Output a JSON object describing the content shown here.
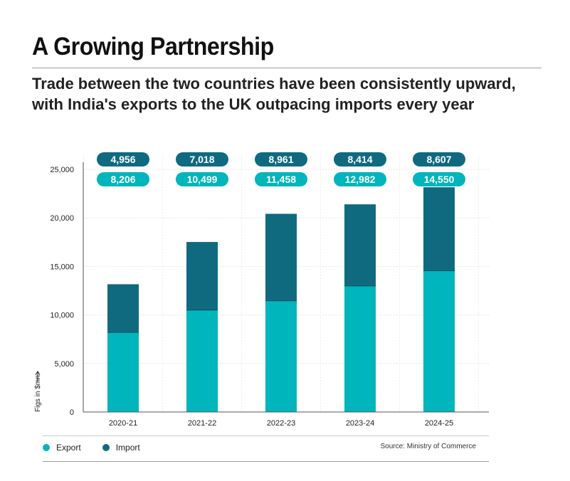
{
  "header": {
    "title": "A Growing Partnership",
    "subtitle_line1": "Trade between the two countries have been consistently upward,",
    "subtitle_line2": "with India's exports to the UK outpacing imports every year"
  },
  "legend": {
    "export_label": "Export",
    "import_label": "Import",
    "export_color": "#00b5bb",
    "import_color": "#0f6a80"
  },
  "source": "Source: Ministry of Commerce",
  "chart_data": {
    "type": "bar",
    "stacked": true,
    "categories": [
      "2020-21",
      "2021-22",
      "2022-23",
      "2023-24",
      "2024-25"
    ],
    "series": [
      {
        "name": "Export",
        "values": [
          8206,
          10499,
          11458,
          12982,
          14550
        ],
        "labels": [
          "8,206",
          "10,499",
          "11,458",
          "12,982",
          "14,550"
        ],
        "color": "#00b5bb"
      },
      {
        "name": "Import",
        "values": [
          4956,
          7018,
          8961,
          8414,
          8607
        ],
        "labels": [
          "4,956",
          "7,018",
          "8,961",
          "8,414",
          "8,607"
        ],
        "color": "#0f6a80"
      }
    ],
    "ylabel": "Figs in $mn",
    "ylim": [
      0,
      25000
    ],
    "yticks": [
      0,
      5000,
      10000,
      15000,
      20000,
      25000
    ],
    "ytick_labels": [
      "0",
      "5,000",
      "10,000",
      "15,000",
      "20,000",
      "25,000"
    ],
    "grid": true
  }
}
